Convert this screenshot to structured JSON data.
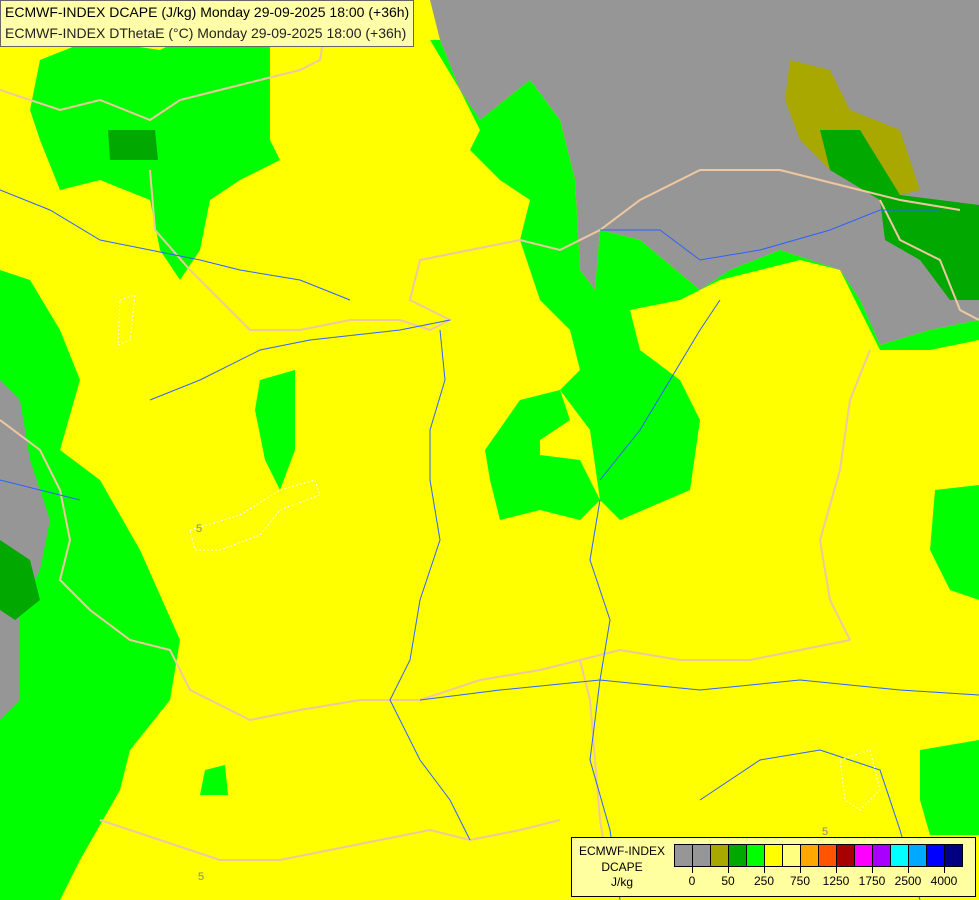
{
  "title": {
    "line1": "ECMWF-INDEX DCAPE (J/kg) Monday 29-09-2025 18:00 (+36h)",
    "line2": "ECMWF-INDEX DThetaE (°C) Monday 29-09-2025 18:00 (+36h)"
  },
  "legend": {
    "model": "ECMWF-INDEX",
    "variable": "DCAPE",
    "unit": "J/kg",
    "colors": [
      "#969696",
      "#969696",
      "#a8a800",
      "#00a800",
      "#00ff00",
      "#ffff00",
      "#ffff80",
      "#ffa800",
      "#ff5500",
      "#a80000",
      "#ff00ff",
      "#a800ff",
      "#00ffff",
      "#00a8ff",
      "#0000ff",
      "#000080"
    ],
    "ticks": [
      "0",
      "50",
      "250",
      "750",
      "1250",
      "1750",
      "2500",
      "4000"
    ]
  },
  "contour_labels": [
    "5",
    "5",
    "5"
  ],
  "map_colors": {
    "background": "#ffff00",
    "green": "#00ff00",
    "dark_green": "#00a800",
    "olive": "#a8a800",
    "gray": "#969696",
    "border": "#f0c8a0",
    "river": "#3060ff"
  }
}
